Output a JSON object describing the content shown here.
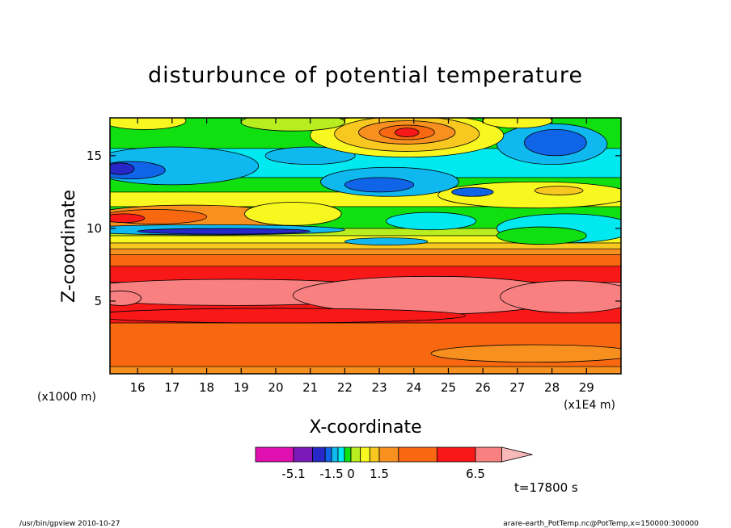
{
  "chart_data": {
    "type": "heatmap",
    "title": "disturbunce of potential temperature",
    "xlabel": "X-coordinate",
    "ylabel": "Z-coordinate",
    "x_unit_left": "(x1000 m)",
    "x_unit_right": "(x1E4 m)",
    "xlim": [
      15.2,
      30.0
    ],
    "ylim": [
      0.0,
      17.6
    ],
    "x_ticks": [
      16,
      17,
      18,
      19,
      20,
      21,
      22,
      23,
      24,
      25,
      26,
      27,
      28,
      29
    ],
    "y_ticks": [
      5,
      10,
      15
    ],
    "colorbar": {
      "labels": [
        {
          "value": -5.1,
          "text": "-5.1"
        },
        {
          "value": -1.5,
          "text": "-1.5"
        },
        {
          "value": 0,
          "text": "0"
        },
        {
          "value": 1.5,
          "text": "1.5"
        },
        {
          "value": 6.5,
          "text": "6.5"
        }
      ],
      "levels": [
        {
          "upper": -5.1,
          "color": "#e010b0"
        },
        {
          "upper": -3.3,
          "color": "#7a18b8"
        },
        {
          "upper": -2.1,
          "color": "#2828c8"
        },
        {
          "upper": -1.5,
          "color": "#1064e8"
        },
        {
          "upper": -1.0,
          "color": "#10b8f0"
        },
        {
          "upper": -0.5,
          "color": "#00e8f0"
        },
        {
          "upper": 0.0,
          "color": "#10e010"
        },
        {
          "upper": 0.5,
          "color": "#b8ee20"
        },
        {
          "upper": 1.0,
          "color": "#f8f820"
        },
        {
          "upper": 1.5,
          "color": "#f8c820"
        },
        {
          "upper": 2.5,
          "color": "#f89020"
        },
        {
          "upper": 4.5,
          "color": "#f86810"
        },
        {
          "upper": 6.5,
          "color": "#f81818"
        },
        {
          "upper": 9.0,
          "color": "#f88080"
        }
      ],
      "overflow_color": "#f8b8b8"
    },
    "annotation_time": "t=17800 s",
    "bands": [
      {
        "z": [
          0.0,
          0.5
        ],
        "value": 2.5
      },
      {
        "z": [
          0.5,
          3.5
        ],
        "value": 3.5
      },
      {
        "z": [
          3.5,
          5.0
        ],
        "value": 5.5
      },
      {
        "z": [
          5.0,
          6.3
        ],
        "value": 7.5
      },
      {
        "z": [
          6.3,
          7.4
        ],
        "value": 5.5
      },
      {
        "z": [
          7.4,
          8.2
        ],
        "value": 3.5
      },
      {
        "z": [
          8.2,
          8.6
        ],
        "value": 2.0
      },
      {
        "z": [
          8.6,
          9.0
        ],
        "value": 1.2
      },
      {
        "z": [
          9.0,
          9.5
        ],
        "value": 0.7
      },
      {
        "z": [
          9.5,
          10.0
        ],
        "value": 0.3
      },
      {
        "z": [
          10.0,
          11.5
        ],
        "value": -0.2
      },
      {
        "z": [
          11.5,
          12.5
        ],
        "value": 0.8
      },
      {
        "z": [
          12.5,
          13.5
        ],
        "value": -0.3
      },
      {
        "z": [
          13.5,
          15.5
        ],
        "value": -0.7
      },
      {
        "z": [
          15.5,
          17.6
        ],
        "value": -0.2
      }
    ],
    "regions": [
      {
        "cx": 18.8,
        "cz": 5.6,
        "rx": 5.0,
        "rz": 0.9,
        "value": 7.5
      },
      {
        "cx": 24.5,
        "cz": 5.4,
        "rx": 4.0,
        "rz": 1.3,
        "value": 8.0
      },
      {
        "cx": 28.5,
        "cz": 5.3,
        "rx": 2.0,
        "rz": 1.1,
        "value": 8.0
      },
      {
        "cx": 15.5,
        "cz": 5.2,
        "rx": 0.6,
        "rz": 0.5,
        "value": 7.5
      },
      {
        "cx": 20.0,
        "cz": 4.0,
        "rx": 5.5,
        "rz": 0.5,
        "value": 5.0
      },
      {
        "cx": 27.5,
        "cz": 1.4,
        "rx": 3.0,
        "rz": 0.6,
        "value": 2.2
      },
      {
        "cx": 17.5,
        "cz": 10.7,
        "rx": 3.0,
        "rz": 0.9,
        "value": 1.8
      },
      {
        "cx": 16.5,
        "cz": 10.8,
        "rx": 1.5,
        "rz": 0.5,
        "value": 3.0
      },
      {
        "cx": 15.6,
        "cz": 10.7,
        "rx": 0.6,
        "rz": 0.3,
        "value": 5.5
      },
      {
        "cx": 20.5,
        "cz": 11.0,
        "rx": 1.4,
        "rz": 0.8,
        "value": 0.7
      },
      {
        "cx": 27.5,
        "cz": 12.3,
        "rx": 2.8,
        "rz": 0.9,
        "value": 0.8
      },
      {
        "cx": 28.2,
        "cz": 12.6,
        "rx": 0.7,
        "rz": 0.3,
        "value": 1.2
      },
      {
        "cx": 18.0,
        "cz": 9.9,
        "rx": 4.0,
        "rz": 0.35,
        "value": -1.2
      },
      {
        "cx": 18.5,
        "cz": 9.8,
        "rx": 2.5,
        "rz": 0.2,
        "value": -2.5
      },
      {
        "cx": 23.2,
        "cz": 9.1,
        "rx": 1.2,
        "rz": 0.25,
        "value": -1.2
      },
      {
        "cx": 24.5,
        "cz": 10.5,
        "rx": 1.3,
        "rz": 0.6,
        "value": -0.7
      },
      {
        "cx": 28.4,
        "cz": 10.0,
        "rx": 2.0,
        "rz": 1.0,
        "value": -0.7
      },
      {
        "cx": 27.7,
        "cz": 9.5,
        "rx": 1.3,
        "rz": 0.6,
        "value": -0.3
      },
      {
        "cx": 17.0,
        "cz": 14.3,
        "rx": 2.5,
        "rz": 1.3,
        "value": -1.2
      },
      {
        "cx": 15.8,
        "cz": 14.0,
        "rx": 1.0,
        "rz": 0.6,
        "value": -1.7
      },
      {
        "cx": 15.5,
        "cz": 14.1,
        "rx": 0.4,
        "rz": 0.4,
        "value": -2.5
      },
      {
        "cx": 21.0,
        "cz": 15.0,
        "rx": 1.3,
        "rz": 0.6,
        "value": -1.2
      },
      {
        "cx": 23.3,
        "cz": 13.2,
        "rx": 2.0,
        "rz": 1.0,
        "value": -1.2
      },
      {
        "cx": 23.0,
        "cz": 13.0,
        "rx": 1.0,
        "rz": 0.5,
        "value": -1.7
      },
      {
        "cx": 28.0,
        "cz": 15.8,
        "rx": 1.6,
        "rz": 1.4,
        "value": -1.2
      },
      {
        "cx": 28.1,
        "cz": 15.9,
        "rx": 0.9,
        "rz": 0.9,
        "value": -1.7
      },
      {
        "cx": 25.7,
        "cz": 12.5,
        "rx": 0.6,
        "rz": 0.3,
        "value": -1.7
      },
      {
        "cx": 23.8,
        "cz": 16.4,
        "rx": 2.8,
        "rz": 1.5,
        "value": 0.7
      },
      {
        "cx": 23.8,
        "cz": 16.5,
        "rx": 2.1,
        "rz": 1.2,
        "value": 1.2
      },
      {
        "cx": 23.8,
        "cz": 16.6,
        "rx": 1.4,
        "rz": 0.8,
        "value": 2.0
      },
      {
        "cx": 23.8,
        "cz": 16.6,
        "rx": 0.8,
        "rz": 0.5,
        "value": 3.5
      },
      {
        "cx": 23.8,
        "cz": 16.6,
        "rx": 0.35,
        "rz": 0.3,
        "value": 5.5
      },
      {
        "cx": 16.2,
        "cz": 17.4,
        "rx": 1.2,
        "rz": 0.6,
        "value": 0.8
      },
      {
        "cx": 27.0,
        "cz": 17.4,
        "rx": 1.0,
        "rz": 0.5,
        "value": 0.8
      },
      {
        "cx": 20.5,
        "cz": 17.3,
        "rx": 1.5,
        "rz": 0.6,
        "value": 0.3
      }
    ]
  },
  "footer": {
    "left": "/usr/bin/gpview   2010-10-27",
    "right": "arare-earth_PotTemp.nc@PotTemp,x=150000:300000"
  }
}
